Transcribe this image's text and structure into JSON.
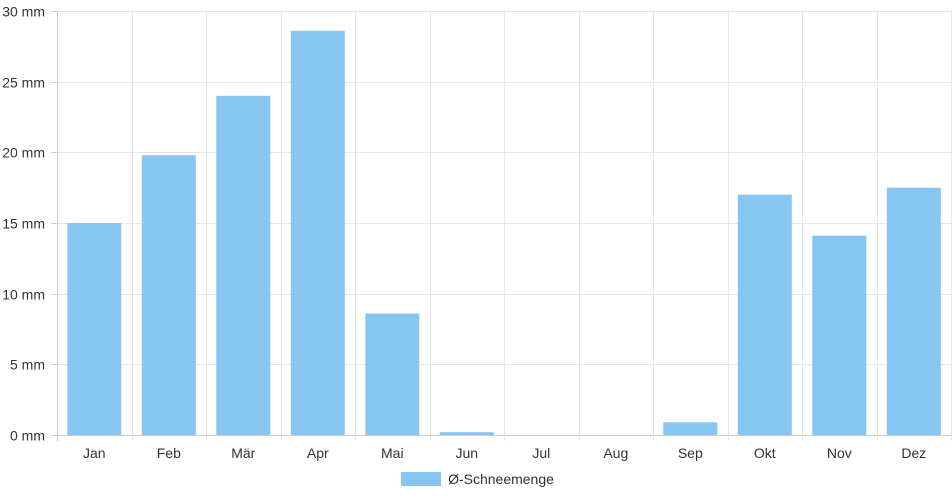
{
  "chart_data": {
    "type": "bar",
    "categories": [
      "Jan",
      "Feb",
      "Mär",
      "Apr",
      "Mai",
      "Jun",
      "Jul",
      "Aug",
      "Sep",
      "Okt",
      "Nov",
      "Dez"
    ],
    "series": [
      {
        "name": "Ø-Schneemenge",
        "values": [
          15.0,
          19.8,
          24.0,
          28.6,
          8.6,
          0.2,
          0,
          0,
          0.9,
          17.0,
          14.1,
          17.5
        ]
      }
    ],
    "ylim": [
      0,
      30
    ],
    "yticks": [
      {
        "value": 0,
        "label": "0 mm"
      },
      {
        "value": 5,
        "label": "5 mm"
      },
      {
        "value": 10,
        "label": "10 mm"
      },
      {
        "value": 15,
        "label": "15 mm"
      },
      {
        "value": 20,
        "label": "20 mm"
      },
      {
        "value": 25,
        "label": "25 mm"
      },
      {
        "value": 30,
        "label": "30 mm"
      }
    ],
    "grid": true,
    "legend_position": "bottom",
    "colors": {
      "bar": "#88c6f2",
      "grid": "#e6e6e6",
      "axis": "#cccccc",
      "text": "#333333"
    }
  }
}
